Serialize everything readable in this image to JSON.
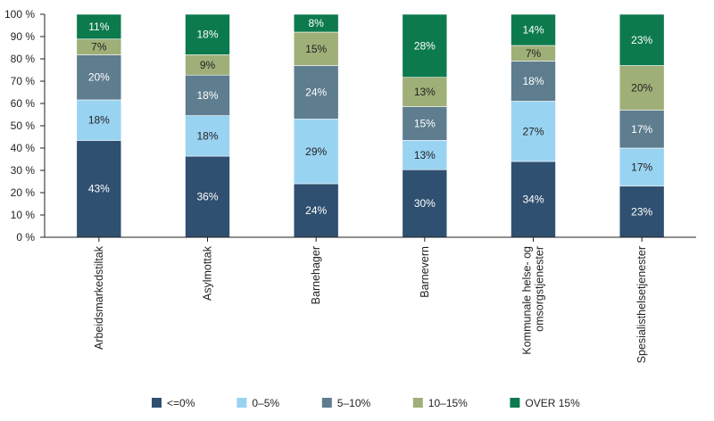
{
  "chart_data": {
    "type": "bar",
    "stacked": true,
    "categories": [
      [
        "Arbeidsmarkedstiltak"
      ],
      [
        "Asylmottak"
      ],
      [
        "Barnehager"
      ],
      [
        "Barnevern"
      ],
      [
        "Kommunale helse- og",
        "omsorgstjenester"
      ],
      [
        "Spesialisthelsetjenester"
      ]
    ],
    "series": [
      {
        "name": "<=0%",
        "color": "#2f5070",
        "values": [
          43,
          36,
          24,
          30,
          34,
          23
        ]
      },
      {
        "name": "0–5%",
        "color": "#99d3f2",
        "values": [
          18,
          18,
          29,
          13,
          27,
          17
        ]
      },
      {
        "name": "5–10%",
        "color": "#5e7d8f",
        "values": [
          20,
          18,
          24,
          15,
          18,
          17
        ]
      },
      {
        "name": "10–15%",
        "color": "#9faf78",
        "values": [
          7,
          9,
          15,
          13,
          7,
          20
        ]
      },
      {
        "name": "OVER 15%",
        "color": "#0d7a4e",
        "values": [
          11,
          18,
          8,
          28,
          14,
          23
        ]
      }
    ],
    "value_labels": [
      [
        "43%",
        "18%",
        "20%",
        "7%",
        "11%"
      ],
      [
        "36%",
        "18%",
        "18%",
        "9%",
        "18%"
      ],
      [
        "24%",
        "29%",
        "24%",
        "15%",
        "8%"
      ],
      [
        "30%",
        "13%",
        "15%",
        "13%",
        "28%"
      ],
      [
        "34%",
        "27%",
        "18%",
        "7%",
        "14%"
      ],
      [
        "23%",
        "17%",
        "17%",
        "20%",
        "23%"
      ]
    ],
    "y_ticks": [
      "0 %",
      "10 %",
      "20 %",
      "30 %",
      "40 %",
      "50 %",
      "60 %",
      "70 %",
      "80 %",
      "90 %",
      "100 %"
    ],
    "ylim": [
      0,
      100
    ],
    "title": "",
    "xlabel": "",
    "ylabel": "",
    "legend_position": "bottom"
  }
}
